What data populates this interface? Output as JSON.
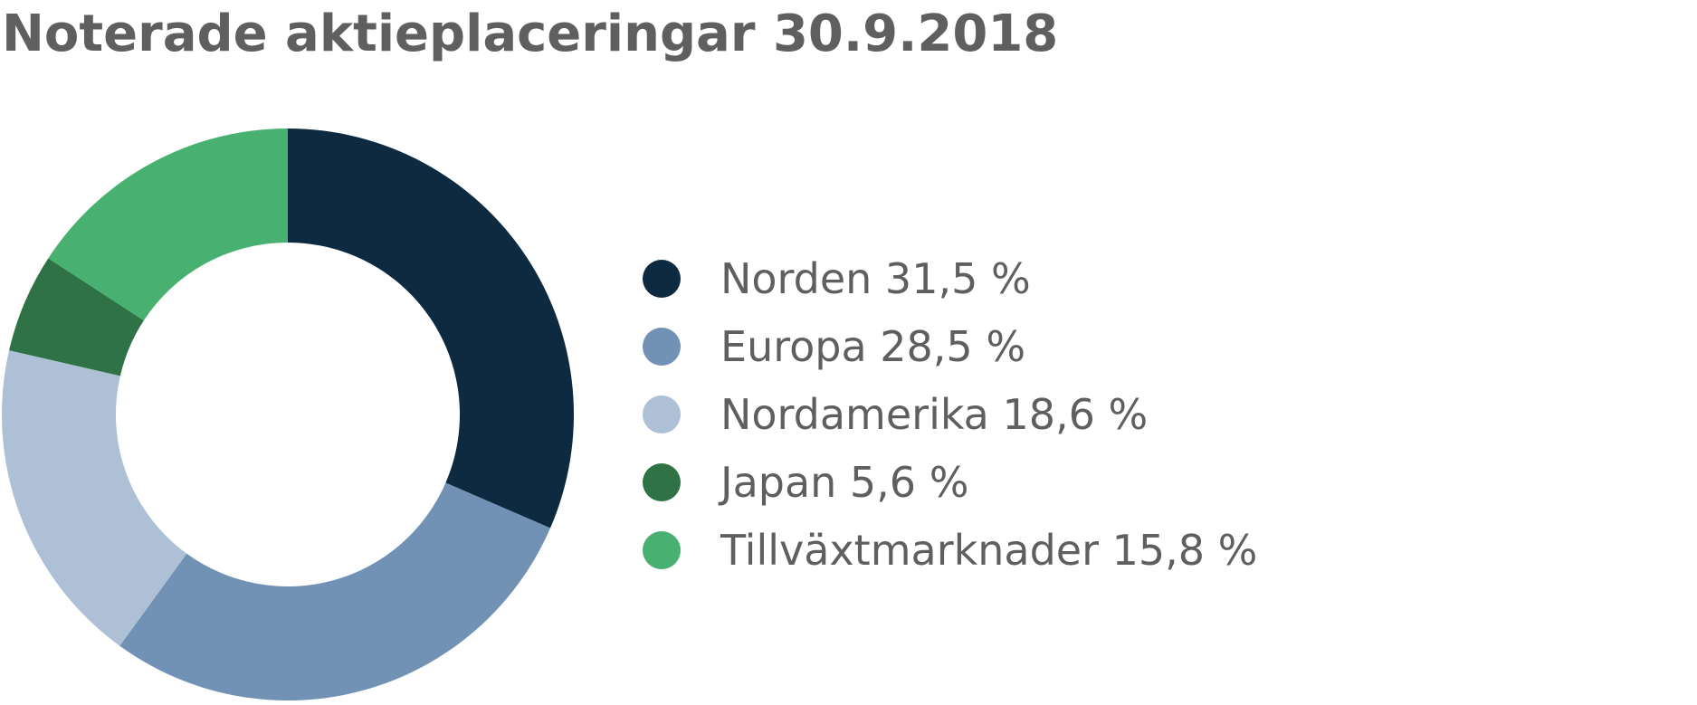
{
  "chart_data": {
    "type": "pie",
    "variant": "donut",
    "title": "Noterade aktieplaceringar 30.9.2018",
    "categories": [
      "Norden",
      "Europa",
      "Nordamerika",
      "Japan",
      "Tillväxtmarknader"
    ],
    "values": [
      31.5,
      28.5,
      18.6,
      5.6,
      15.8
    ],
    "legend_labels": [
      "Norden 31,5 %",
      "Europa 28,5 %",
      "Nordamerika 18,6 %",
      "Japan 5,6 %",
      "Tillväxtmarknader 15,8 %"
    ],
    "colors": [
      "#0d2a40",
      "#7192b5",
      "#adc0d5",
      "#2f7246",
      "#48b070"
    ],
    "legend_position": "right"
  }
}
